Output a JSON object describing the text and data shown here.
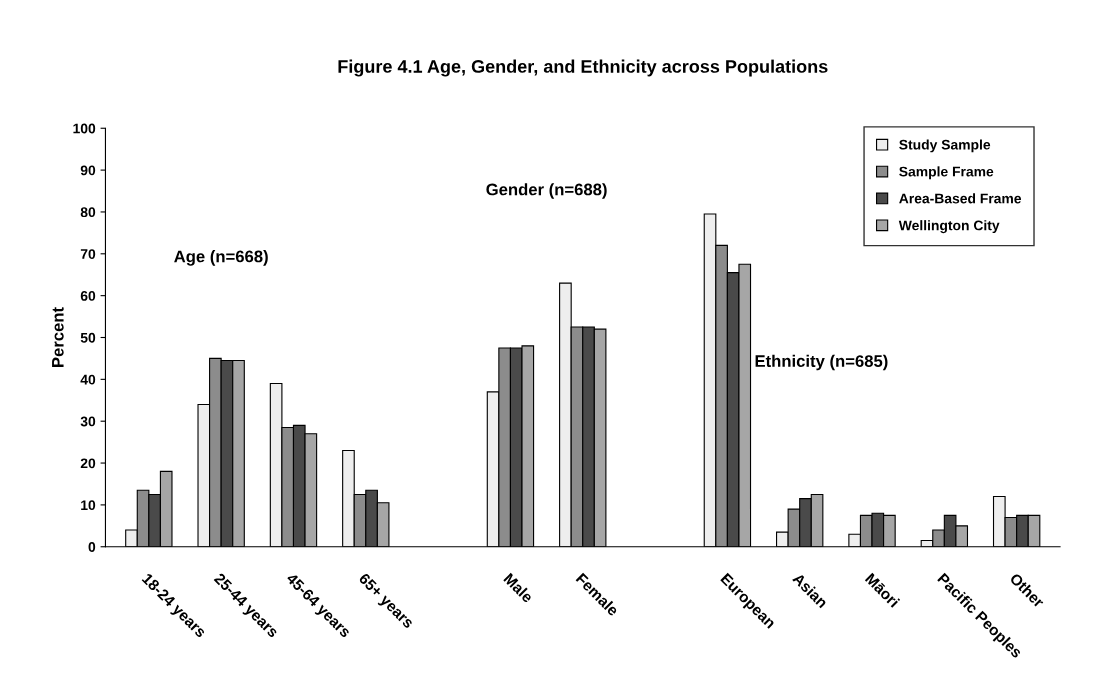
{
  "chart_data": {
    "type": "bar",
    "title": "Figure 4.1 Age, Gender, and Ethnicity across Populations",
    "ylabel": "Percent",
    "categories": [
      "18-24 years",
      "25-44 years",
      "45-64 years",
      "65+ years",
      null,
      "Male",
      "Female",
      null,
      "European",
      "Asian",
      "Māori",
      "Pacific Peoples",
      "Other"
    ],
    "series": [
      {
        "name": "Study Sample",
        "color": "#eeeeee",
        "values": [
          4,
          34,
          39,
          23,
          null,
          37,
          63,
          null,
          79.5,
          3.5,
          3,
          1.5,
          12
        ]
      },
      {
        "name": "Sample Frame",
        "color": "#8c8c8c",
        "values": [
          13.5,
          45,
          28.5,
          12.5,
          null,
          47.5,
          52.5,
          null,
          72,
          9,
          7.5,
          4,
          7
        ]
      },
      {
        "name": "Area-Based Frame",
        "color": "#4a4a4a",
        "values": [
          12.5,
          44.5,
          29,
          13.5,
          null,
          47.5,
          52.5,
          null,
          65.5,
          11.5,
          8,
          7.5,
          7.5
        ]
      },
      {
        "name": "Wellington City",
        "color": "#a6a6a6",
        "values": [
          18,
          44.5,
          27,
          10.5,
          null,
          48,
          52,
          null,
          67.5,
          12.5,
          7.5,
          5,
          7.5
        ]
      }
    ],
    "ylim": [
      0,
      100
    ],
    "yticks": [
      0,
      10,
      20,
      30,
      40,
      50,
      60,
      70,
      80,
      90,
      100
    ],
    "grid": false,
    "legend": "top right",
    "annotations": [
      "Age (n=668)",
      "Gender (n=688)",
      "Ethnicity (n=685)"
    ]
  }
}
